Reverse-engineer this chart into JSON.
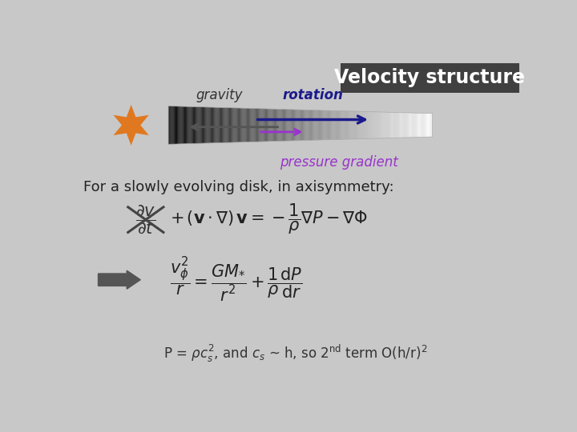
{
  "bg_color": "#c8c8c8",
  "title_bg_color": "#404040",
  "title_text": "Velocity structure",
  "title_color": "#ffffff",
  "gravity_label": "gravity",
  "rotation_label": "rotation",
  "pressure_label": "pressure gradient",
  "text_intro": "For a slowly evolving disk, in axisymmetry:",
  "star_color": "#e07820",
  "arrow_rotation_color": "#1a1a8c",
  "arrow_pressure_color": "#9933cc",
  "arrow_gravity_color": "#555555",
  "dark_arrow_color": "#555555"
}
